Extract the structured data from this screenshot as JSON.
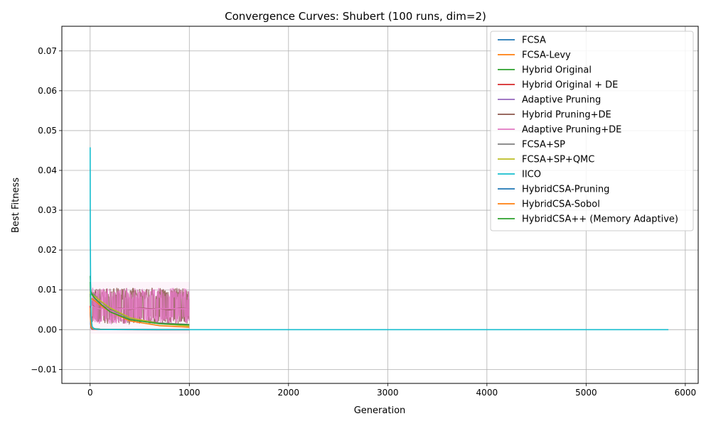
{
  "chart_data": {
    "type": "line",
    "title": "Convergence Curves: Shubert (100 runs, dim=2)",
    "xlabel": "Generation",
    "ylabel": "Best Fitness",
    "xlim": [
      -285,
      6130
    ],
    "ylim": [
      -0.0135,
      0.0762
    ],
    "x_ticks": [
      0,
      1000,
      2000,
      3000,
      4000,
      5000,
      6000
    ],
    "x_tick_labels": [
      "0",
      "1000",
      "2000",
      "3000",
      "4000",
      "5000",
      "6000"
    ],
    "y_ticks": [
      -0.01,
      0.0,
      0.01,
      0.02,
      0.03,
      0.04,
      0.05,
      0.06,
      0.07
    ],
    "y_tick_labels": [
      "−0.01",
      "0.00",
      "0.01",
      "0.02",
      "0.03",
      "0.04",
      "0.05",
      "0.06",
      "0.07"
    ],
    "grid": true,
    "legend_position": "top-right",
    "series": [
      {
        "name": "FCSA",
        "color": "#1f77b4",
        "x": [
          0,
          5,
          10,
          20,
          50,
          100,
          200,
          400,
          700,
          1000
        ],
        "y": [
          0.005,
          0.0025,
          0.0012,
          0.0005,
          0.0002,
          0.0001,
          5e-05,
          3e-05,
          2e-05,
          1e-05
        ]
      },
      {
        "name": "FCSA-Levy",
        "color": "#ff7f0e",
        "x": [
          0,
          5,
          10,
          20,
          50,
          100,
          200,
          400,
          700,
          1000
        ],
        "y": [
          0.0085,
          0.008,
          0.0078,
          0.0077,
          0.0072,
          0.0062,
          0.0045,
          0.0022,
          0.001,
          0.0006
        ]
      },
      {
        "name": "Hybrid Original",
        "color": "#2ca02c",
        "x": [
          0,
          5,
          10,
          20,
          50,
          100,
          200,
          400,
          700,
          1000
        ],
        "y": [
          0.012,
          0.004,
          0.0015,
          0.0005,
          0.0002,
          0.0001,
          5e-05,
          2e-05,
          1e-05,
          1e-05
        ]
      },
      {
        "name": "Hybrid Original + DE",
        "color": "#d62728",
        "x": [
          0,
          5,
          10,
          20,
          50,
          100,
          200,
          400,
          700,
          1000
        ],
        "y": [
          0.006,
          0.0015,
          0.0004,
          0.0001,
          5e-05,
          2e-05,
          1e-05,
          0.0,
          0.0,
          0.0
        ]
      },
      {
        "name": "Adaptive Pruning",
        "color": "#9467bd",
        "x": [
          0,
          5,
          10,
          20,
          50,
          100,
          200,
          400,
          700,
          1000
        ],
        "y": [
          0.005,
          0.002,
          0.0008,
          0.0003,
          0.0001,
          5e-05,
          2e-05,
          1e-05,
          0.0,
          0.0
        ]
      },
      {
        "name": "Hybrid Pruning+DE",
        "color": "#8c564b",
        "x": [
          0,
          20,
          50,
          100,
          150,
          200,
          300,
          400,
          500,
          600,
          700,
          800,
          900,
          1000
        ],
        "y": [
          0.009,
          0.0062,
          0.0055,
          0.0052,
          0.0056,
          0.005,
          0.0054,
          0.0051,
          0.0055,
          0.0052,
          0.0053,
          0.005,
          0.0054,
          0.0052
        ]
      },
      {
        "name": "Adaptive Pruning+DE",
        "color": "#e377c2",
        "x": [
          0,
          20,
          50,
          100,
          150,
          200,
          300,
          400,
          500,
          600,
          700,
          800,
          900,
          1000
        ],
        "y": [
          0.009,
          0.006,
          0.0055,
          0.0052,
          0.0055,
          0.0051,
          0.0053,
          0.0052,
          0.0054,
          0.0051,
          0.0053,
          0.0052,
          0.0053,
          0.0052
        ]
      },
      {
        "name": "FCSA+SP",
        "color": "#7f7f7f",
        "x": [
          0,
          5,
          10,
          20,
          50,
          100,
          200,
          400,
          700,
          1000
        ],
        "y": [
          0.0105,
          0.0095,
          0.0092,
          0.009,
          0.0085,
          0.0072,
          0.0052,
          0.0028,
          0.0017,
          0.0013
        ]
      },
      {
        "name": "FCSA+SP+QMC",
        "color": "#bcbd22",
        "x": [
          0,
          5,
          10,
          20,
          50,
          100,
          200,
          400,
          700,
          1000
        ],
        "y": [
          0.0095,
          0.009,
          0.0088,
          0.0087,
          0.0083,
          0.0073,
          0.0055,
          0.003,
          0.0015,
          0.0009
        ]
      },
      {
        "name": "IICO",
        "color": "#17becf",
        "x": [
          0,
          2,
          5,
          10,
          20,
          40,
          80,
          200,
          1000,
          3000,
          5830
        ],
        "y": [
          0.0458,
          0.024,
          0.01,
          0.003,
          0.0008,
          0.0002,
          5e-05,
          1e-05,
          0.0,
          0.0,
          0.0
        ]
      },
      {
        "name": "HybridCSA-Pruning",
        "color": "#1f77b4",
        "x": [
          0,
          5,
          10,
          20,
          50,
          100,
          200,
          400,
          700,
          1000
        ],
        "y": [
          0.0045,
          0.0015,
          0.0005,
          0.0002,
          0.0001,
          5e-05,
          2e-05,
          1e-05,
          0.0,
          0.0
        ]
      },
      {
        "name": "HybridCSA-Sobol",
        "color": "#ff7f0e",
        "x": [
          0,
          5,
          10,
          20,
          50,
          100,
          200,
          400,
          700,
          1000
        ],
        "y": [
          0.0055,
          0.002,
          0.0007,
          0.0003,
          0.0001,
          5e-05,
          2e-05,
          1e-05,
          0.0,
          0.0
        ]
      },
      {
        "name": "HybridCSA++ (Memory Adaptive)",
        "color": "#2ca02c",
        "x": [
          0,
          5,
          10,
          20,
          50,
          100,
          200,
          400,
          700,
          1000
        ],
        "y": [
          0.0135,
          0.0105,
          0.0095,
          0.0088,
          0.0078,
          0.0066,
          0.0045,
          0.0025,
          0.0015,
          0.0012
        ]
      }
    ]
  }
}
